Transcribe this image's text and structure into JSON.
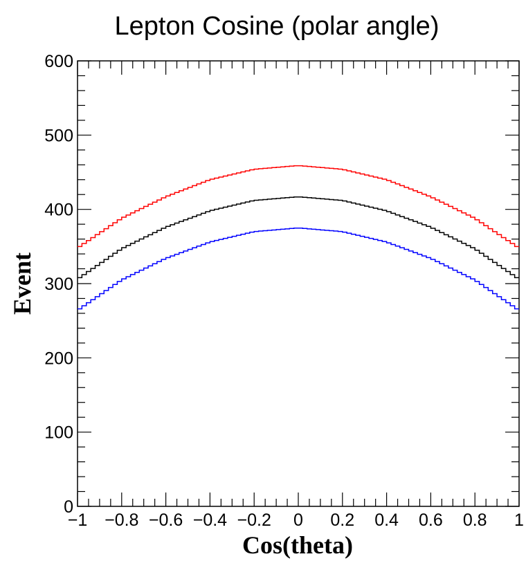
{
  "chart_data": {
    "type": "line",
    "title": "Lepton Cosine (polar angle)",
    "xlabel": "Cos(theta)",
    "ylabel": "Event",
    "xlim": [
      -1,
      1
    ],
    "ylim": [
      0,
      600
    ],
    "x_ticks": [
      -1,
      -0.8,
      -0.6,
      -0.4,
      -0.2,
      0,
      0.2,
      0.4,
      0.6,
      0.8,
      1
    ],
    "x_tick_labels": [
      "−1",
      "−0.8",
      "−0.6",
      "−0.4",
      "−0.2",
      "0",
      "0.2",
      "0.4",
      "0.6",
      "0.8",
      "1"
    ],
    "y_ticks": [
      0,
      100,
      200,
      300,
      400,
      500,
      600
    ],
    "y_tick_labels": [
      "0",
      "100",
      "200",
      "300",
      "400",
      "500",
      "600"
    ],
    "grid": false,
    "step_histogram": true,
    "bins": 100,
    "series": [
      {
        "color": "#ff0000",
        "x": [
          -1,
          -0.8,
          -0.6,
          -0.4,
          -0.2,
          0,
          0.2,
          0.4,
          0.6,
          0.8,
          1
        ],
        "values": [
          348,
          388,
          417,
          440,
          454,
          459,
          454,
          440,
          417,
          388,
          348
        ]
      },
      {
        "color": "#000000",
        "x": [
          -1,
          -0.8,
          -0.6,
          -0.4,
          -0.2,
          0,
          0.2,
          0.4,
          0.6,
          0.8,
          1
        ],
        "values": [
          306,
          347,
          376,
          398,
          412,
          417,
          412,
          398,
          376,
          347,
          306
        ]
      },
      {
        "color": "#0000ff",
        "x": [
          -1,
          -0.8,
          -0.6,
          -0.4,
          -0.2,
          0,
          0.2,
          0.4,
          0.6,
          0.8,
          1
        ],
        "values": [
          264,
          305,
          334,
          356,
          370,
          375,
          370,
          356,
          334,
          305,
          264
        ]
      }
    ]
  }
}
